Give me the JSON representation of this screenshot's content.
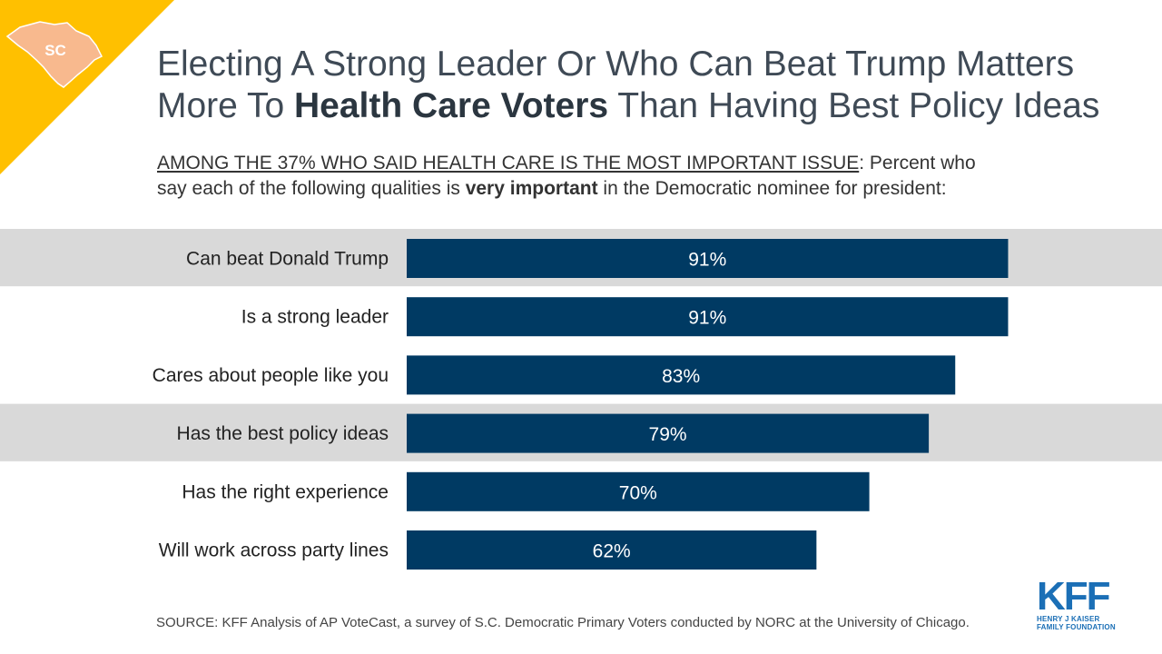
{
  "badge": {
    "label": "SC",
    "corner_color": "#FFC000",
    "state_color": "#F8B98E"
  },
  "title": {
    "line1": "Electing A Strong Leader Or Who Can Beat Trump Matters",
    "line2_pre": "More To ",
    "line2_bold": "Health Care Voters",
    "line2_post": " Than Having Best Policy Ideas"
  },
  "subtitle": {
    "underlined": "AMONG THE 37% WHO SAID HEALTH CARE IS THE MOST IMPORTANT  ISSUE",
    "part1": ": Percent who",
    "part2": "say each of the following qualities is ",
    "bold": "very important",
    "part3": " in the Democratic  nominee for president:"
  },
  "chart_data": {
    "type": "bar",
    "orientation": "horizontal",
    "categories": [
      "Can beat Donald Trump",
      "Is a strong leader",
      "Cares about people like you",
      "Has the best policy ideas",
      "Has the right experience",
      "Will work across party lines"
    ],
    "values": [
      91,
      91,
      83,
      79,
      70,
      62
    ],
    "labels": [
      "91%",
      "91%",
      "83%",
      "79%",
      "70%",
      "62%"
    ],
    "highlighted": [
      0,
      3
    ],
    "bar_color": "#003A63",
    "highlight_color": "#D9D9D9",
    "xlim": [
      0,
      100
    ]
  },
  "source": "SOURCE: KFF Analysis of AP VoteCast, a survey of S.C. Democratic Primary Voters conducted by NORC at the University  of Chicago.",
  "logo": {
    "name": "KFF",
    "line1": "HENRY J KAISER",
    "line2": "FAMILY FOUNDATION"
  }
}
